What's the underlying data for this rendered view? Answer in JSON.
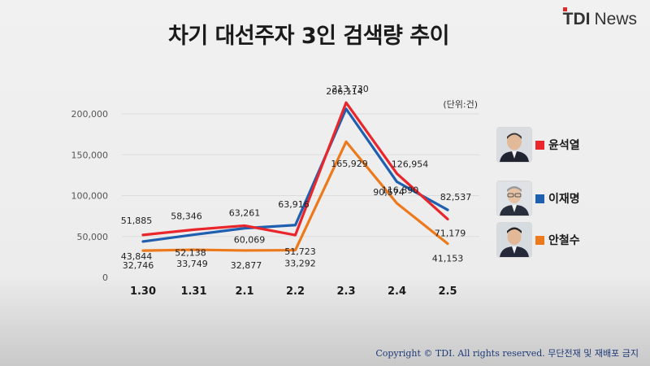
{
  "title": "차기 대선주자 3인 검색량 추이",
  "brand": {
    "part1": "TDI",
    "part2": "News"
  },
  "footer": "Copyright © TDI. All rights reserved. 무단전재 및 재배포 금지",
  "chart_data": {
    "type": "line",
    "title": "차기 대선주자 3인 검색량 추이",
    "unit_label": "(단위:건)",
    "categories": [
      "1.30",
      "1.31",
      "2.1",
      "2.2",
      "2.3",
      "2.4",
      "2.5"
    ],
    "ylim": [
      0,
      200000
    ],
    "yticks": [
      "0",
      "50,000",
      "100,000",
      "150,000",
      "200,000"
    ],
    "ytick_values": [
      0,
      50000,
      100000,
      150000,
      200000
    ],
    "grid": true,
    "legend_position": "right",
    "series": [
      {
        "name": "윤석열",
        "color": "#e8262b",
        "values": [
          51885,
          58346,
          63261,
          51723,
          213730,
          126954,
          71179
        ],
        "labels": [
          "51,885",
          "58,346",
          "63,261",
          "51,723",
          "213,730",
          "126,954",
          "71,179"
        ]
      },
      {
        "name": "이재명",
        "color": "#1f5fb0",
        "values": [
          43844,
          52138,
          60069,
          63916,
          206114,
          116890,
          82537
        ],
        "labels": [
          "43,844",
          "52,138",
          "60,069",
          "63,916",
          "206,114",
          "116,890",
          "82,537"
        ]
      },
      {
        "name": "안철수",
        "color": "#ec7a1c",
        "values": [
          32746,
          33749,
          32877,
          33292,
          165929,
          90574,
          41153
        ],
        "labels": [
          "32,746",
          "33,749",
          "32,877",
          "33,292",
          "165,929",
          "90,574",
          "41,153"
        ]
      }
    ]
  }
}
